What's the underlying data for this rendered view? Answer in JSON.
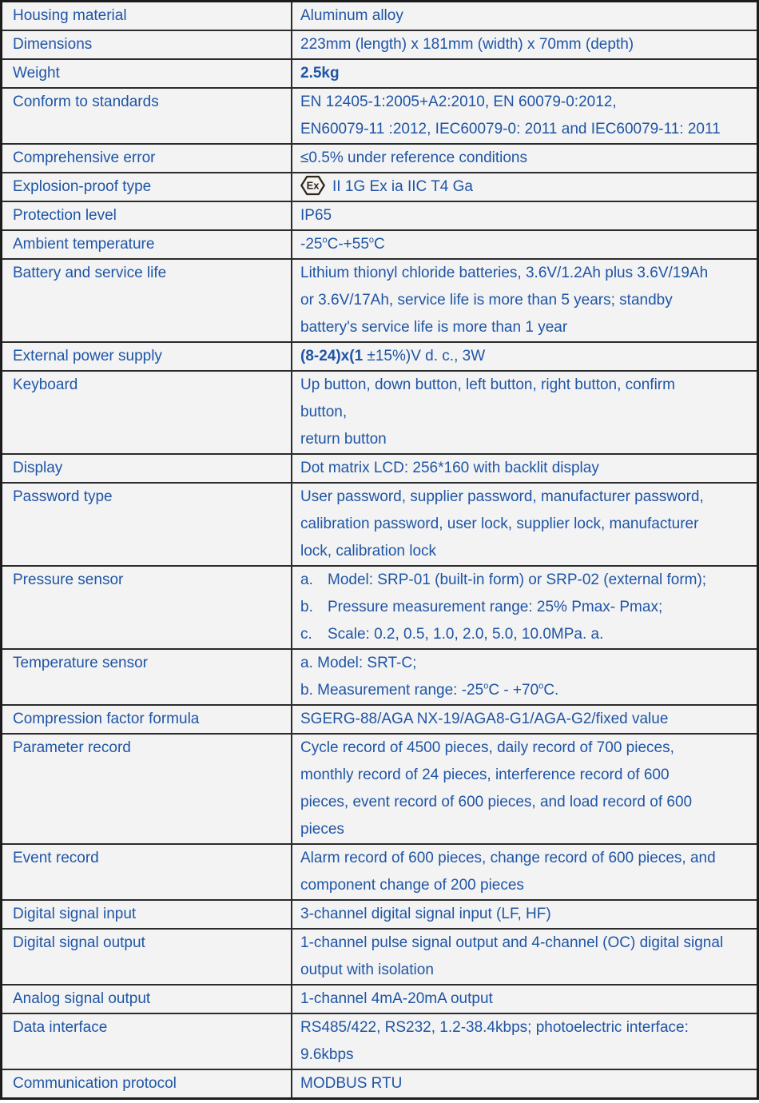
{
  "doc": {
    "kind": "product-specification-table",
    "columns": [
      "parameter",
      "value"
    ]
  },
  "colors": {
    "text_blue": "#1F55A6",
    "inner_border": "#2B2B2B",
    "outer_border": "#1C1C1C",
    "cell_background": "#F3F3F3",
    "ex_icon_stroke": "#2E2619"
  },
  "icons": {
    "explosion_proof": "ex-hexagon-certification-icon",
    "ex_icon_text": "Ex"
  },
  "table": {
    "rows": [
      {
        "label": "Housing material",
        "lines": [
          [
            {
              "t": "Aluminum alloy"
            }
          ]
        ]
      },
      {
        "label": "Dimensions",
        "lines": [
          [
            {
              "t": "223mm (length) x 181mm (width) x 70mm (depth)"
            }
          ]
        ]
      },
      {
        "label": "Weight",
        "lines": [
          [
            {
              "t": "2.5kg",
              "b": true
            }
          ]
        ]
      },
      {
        "label": "Conform to standards",
        "lines": [
          [
            {
              "t": "EN 12405-1:2005+A2:2010, EN 60079-0:2012,"
            }
          ],
          [
            {
              "t": "EN60079-11 :2012, IEC60079-0: 2011 and IEC60079-11: 2011"
            }
          ]
        ]
      },
      {
        "label": "Comprehensive error",
        "lines": [
          [
            {
              "t": "≤0.5% under reference conditions"
            }
          ]
        ]
      },
      {
        "label": "Explosion-proof type",
        "icon": "ex",
        "lines": [
          [
            {
              "t": "II 1G Ex ia IIC T4 Ga"
            }
          ]
        ]
      },
      {
        "label": "Protection level",
        "lines": [
          [
            {
              "t": "IP65"
            }
          ]
        ]
      },
      {
        "label": "Ambient temperature",
        "lines": [
          [
            {
              "t": "-25"
            },
            {
              "t": "o",
              "sup": true
            },
            {
              "t": "C-+55"
            },
            {
              "t": "o",
              "sup": true
            },
            {
              "t": "C"
            }
          ]
        ]
      },
      {
        "label": "Battery and service life",
        "lines": [
          [
            {
              "t": "Lithium thionyl chloride batteries, 3.6V/1.2Ah plus 3.6V/19Ah"
            }
          ],
          [
            {
              "t": "or 3.6V/17Ah, service life is more than 5 years; standby"
            }
          ],
          [
            {
              "t": "battery's service life is more than 1 year"
            }
          ]
        ]
      },
      {
        "label": "External power supply",
        "lines": [
          [
            {
              "t": "(8-24)x(1",
              "b": true
            },
            {
              "t": " ±15%)V d. c., 3W"
            }
          ]
        ]
      },
      {
        "label": "Keyboard",
        "lines": [
          [
            {
              "t": "Up button, down button, left button, right button, confirm"
            }
          ],
          [
            {
              "t": "button,"
            }
          ],
          [
            {
              "t": "return button"
            }
          ]
        ]
      },
      {
        "label": "Display",
        "lines": [
          [
            {
              "t": "Dot matrix LCD: 256*160 with backlit display"
            }
          ]
        ]
      },
      {
        "label": "Password type",
        "lines": [
          [
            {
              "t": "User password, supplier password, manufacturer password,"
            }
          ],
          [
            {
              "t": "calibration password, user lock, supplier lock, manufacturer"
            }
          ],
          [
            {
              "t": "lock, calibration lock"
            }
          ]
        ]
      },
      {
        "label": "Pressure sensor",
        "lines": [
          [
            {
              "t": "a.",
              "mk": true
            },
            {
              "t": "Model: SRP-01 (built-in form) or SRP-02 (external form);"
            }
          ],
          [
            {
              "t": "b.",
              "mk": true
            },
            {
              "t": "Pressure measurement range: 25% Pmax- Pmax;"
            }
          ],
          [
            {
              "t": "c.",
              "mk": true
            },
            {
              "t": "Scale: 0.2, 0.5, 1.0, 2.0, 5.0, 10.0MPa. a."
            }
          ]
        ]
      },
      {
        "label": "Temperature sensor",
        "lines": [
          [
            {
              "t": "a. Model: SRT-C;"
            }
          ],
          [
            {
              "t": "b. Measurement range: -25"
            },
            {
              "t": "o",
              "sup": true
            },
            {
              "t": "C - +70"
            },
            {
              "t": "o",
              "sup": true
            },
            {
              "t": "C."
            }
          ]
        ]
      },
      {
        "label": "Compression factor formula",
        "lines": [
          [
            {
              "t": "SGERG-88/AGA NX-19/AGA8-G1/AGA-G2/fixed value"
            }
          ]
        ]
      },
      {
        "label": "Parameter record",
        "lines": [
          [
            {
              "t": "Cycle record of 4500 pieces, daily record of 700 pieces,"
            }
          ],
          [
            {
              "t": "monthly record of 24 pieces, interference record of 600"
            }
          ],
          [
            {
              "t": "pieces, event record of 600 pieces, and load record of 600"
            }
          ],
          [
            {
              "t": "pieces"
            }
          ]
        ]
      },
      {
        "label": "Event record",
        "lines": [
          [
            {
              "t": "Alarm record of 600 pieces, change record of 600 pieces, and"
            }
          ],
          [
            {
              "t": "component change of 200 pieces"
            }
          ]
        ]
      },
      {
        "label": "Digital signal input",
        "lines": [
          [
            {
              "t": "3-channel digital signal input (LF, HF)"
            }
          ]
        ]
      },
      {
        "label": "Digital signal output",
        "lines": [
          [
            {
              "t": "1-channel pulse signal output and 4-channel (OC) digital signal"
            }
          ],
          [
            {
              "t": "output with isolation"
            }
          ]
        ]
      },
      {
        "label": "Analog signal output",
        "lines": [
          [
            {
              "t": "1-channel 4mA-20mA output"
            }
          ]
        ]
      },
      {
        "label": "Data interface",
        "lines": [
          [
            {
              "t": "RS485/422, RS232, 1.2-38.4kbps; photoelectric interface:"
            }
          ],
          [
            {
              "t": "9.6kbps"
            }
          ]
        ]
      },
      {
        "label": "Communication protocol",
        "lines": [
          [
            {
              "t": "MODBUS RTU"
            }
          ]
        ]
      }
    ]
  }
}
